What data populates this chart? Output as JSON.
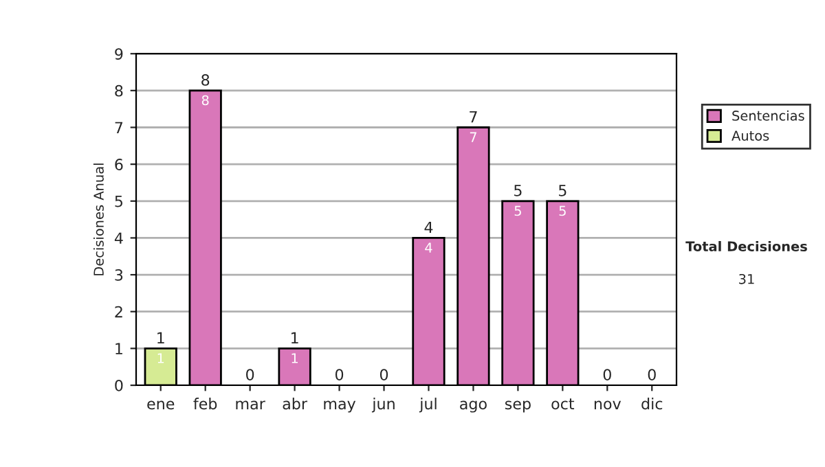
{
  "chart_data": {
    "type": "bar",
    "stacked": true,
    "ylabel": "Decisiones Anual",
    "categories": [
      "ene",
      "feb",
      "mar",
      "abr",
      "may",
      "jun",
      "jul",
      "ago",
      "sep",
      "oct",
      "nov",
      "dic"
    ],
    "series": [
      {
        "name": "Sentencias",
        "color": "#d977b9",
        "values": [
          0,
          8,
          0,
          1,
          0,
          0,
          4,
          7,
          5,
          5,
          0,
          0
        ],
        "value_labels": [
          null,
          "8",
          null,
          "1",
          null,
          null,
          "4",
          "7",
          "5",
          "5",
          null,
          null
        ]
      },
      {
        "name": "Autos",
        "color": "#d6eb94",
        "values": [
          1,
          0,
          0,
          0,
          0,
          0,
          0,
          0,
          0,
          0,
          0,
          0
        ],
        "value_labels": [
          "1",
          null,
          null,
          null,
          null,
          null,
          null,
          null,
          null,
          null,
          null,
          null
        ]
      }
    ],
    "totals": [
      "1",
      "8",
      "0",
      "1",
      "0",
      "0",
      "4",
      "7",
      "5",
      "5",
      "0",
      "0"
    ],
    "ylim": [
      0,
      9
    ],
    "yticks": [
      0,
      1,
      2,
      3,
      4,
      5,
      6,
      7,
      8,
      9
    ],
    "grid": "y",
    "legend": "right",
    "annotations": [
      "Total Decisiones",
      "31"
    ]
  }
}
